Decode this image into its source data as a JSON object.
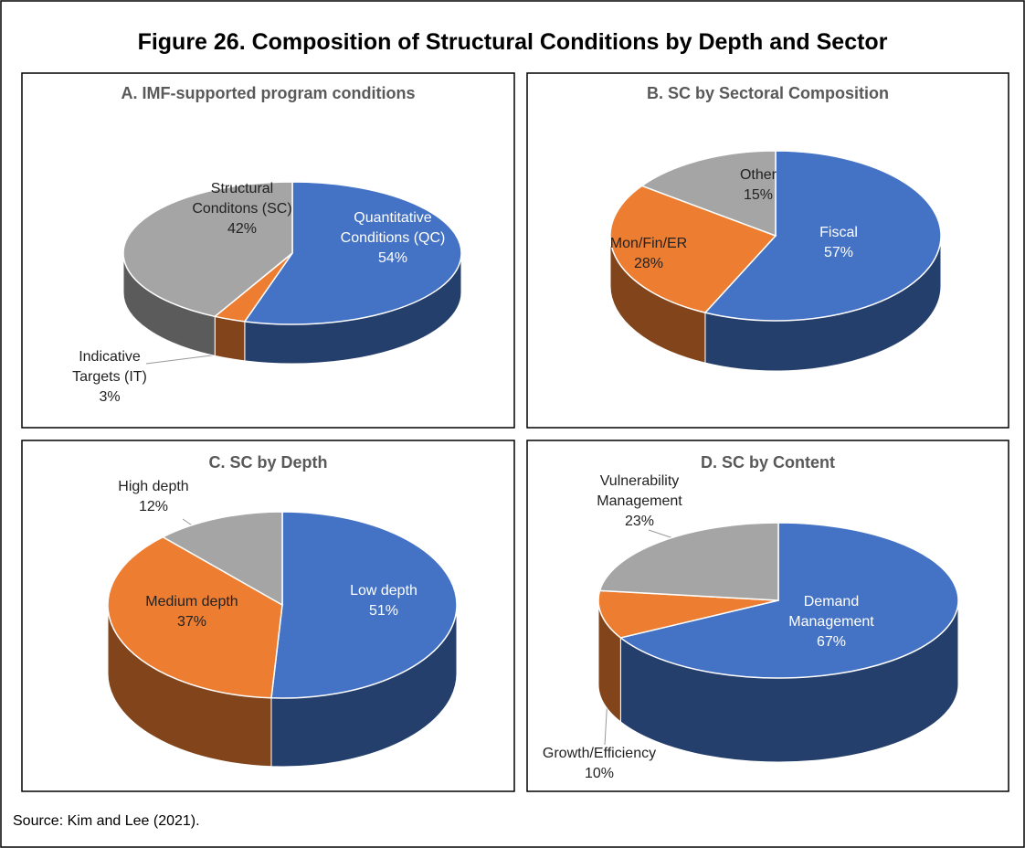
{
  "title": "Figure 26. Composition of Structural Conditions by Depth and Sector",
  "source": "Source: Kim and Lee (2021).",
  "chart_data": [
    {
      "type": "pie",
      "title": "A. IMF-supported program conditions",
      "categories": [
        "Quantitative Conditions (QC)",
        "Indicative Targets (IT)",
        "Structural Conditons (SC)"
      ],
      "values": [
        54,
        3,
        42
      ],
      "value_labels": [
        "54%",
        "3%",
        "42%"
      ],
      "colors": [
        "#4472c4",
        "#ed7d31",
        "#a5a5a5"
      ]
    },
    {
      "type": "pie",
      "title": "B. SC by Sectoral Composition",
      "categories": [
        "Fiscal",
        "Mon/Fin/ER",
        "Other"
      ],
      "values": [
        57,
        28,
        15
      ],
      "value_labels": [
        "57%",
        "28%",
        "15%"
      ],
      "colors": [
        "#4472c4",
        "#ed7d31",
        "#a5a5a5"
      ]
    },
    {
      "type": "pie",
      "title": "C. SC by Depth",
      "categories": [
        "Low depth",
        "Medium depth",
        "High depth"
      ],
      "values": [
        51,
        37,
        12
      ],
      "value_labels": [
        "51%",
        "37%",
        "12%"
      ],
      "colors": [
        "#4472c4",
        "#ed7d31",
        "#a5a5a5"
      ]
    },
    {
      "type": "pie",
      "title": "D. SC by Content",
      "categories": [
        "Demand Management",
        "Growth/Efficiency",
        "Vulnerability Management"
      ],
      "values": [
        67,
        10,
        23
      ],
      "value_labels": [
        "67%",
        "10%",
        "23%"
      ],
      "colors": [
        "#4472c4",
        "#ed7d31",
        "#a5a5a5"
      ]
    }
  ]
}
